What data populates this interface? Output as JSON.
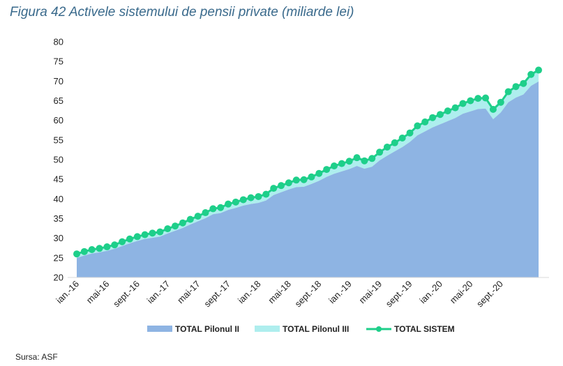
{
  "title": "Figura 42 Activele sistemului de pensii private (miliarde lei)",
  "source": "Sursa: ASF",
  "colors": {
    "pilon2": "#8eb4e3",
    "pilon3": "#aeeeee",
    "sistem": "#1ecf8a"
  },
  "chart_data": {
    "type": "area",
    "title": "Figura 42 Activele sistemului de pensii private (miliarde lei)",
    "ylim": [
      20,
      80
    ],
    "yticks": [
      20,
      25,
      30,
      35,
      40,
      45,
      50,
      55,
      60,
      65,
      70,
      75,
      80
    ],
    "x_tick_labels": [
      "ian.-16",
      "mai-16",
      "sept.-16",
      "ian.-17",
      "mai-17",
      "sept.-17",
      "ian.-18",
      "mai-18",
      "sept.-18",
      "ian.-19",
      "mai-19",
      "sept.-19",
      "ian.-20",
      "mai-20",
      "sept.-20"
    ],
    "x_tick_every": 4,
    "series": [
      {
        "name": "TOTAL Pilonul II",
        "type": "area",
        "values": [
          25.0,
          25.6,
          26.1,
          26.4,
          26.8,
          27.3,
          28.0,
          28.7,
          29.3,
          29.8,
          30.1,
          30.4,
          31.2,
          31.9,
          32.6,
          33.5,
          34.3,
          35.1,
          36.1,
          36.4,
          37.2,
          37.7,
          38.3,
          38.7,
          39.0,
          39.6,
          41.0,
          41.7,
          42.4,
          43.0,
          43.1,
          43.8,
          44.6,
          45.6,
          46.4,
          47.0,
          47.6,
          48.4,
          47.7,
          48.2,
          49.8,
          51.0,
          52.1,
          53.2,
          54.5,
          56.2,
          57.2,
          58.2,
          59.0,
          59.8,
          60.6,
          61.7,
          62.3,
          62.9,
          63.0,
          60.3,
          62.0,
          64.6,
          65.8,
          66.6,
          68.8,
          69.9
        ]
      },
      {
        "name": "TOTAL Pilonul III",
        "type": "area",
        "values": [
          1.0,
          1.0,
          1.0,
          1.0,
          1.0,
          1.0,
          1.1,
          1.1,
          1.1,
          1.1,
          1.2,
          1.2,
          1.2,
          1.2,
          1.3,
          1.3,
          1.3,
          1.4,
          1.4,
          1.4,
          1.5,
          1.5,
          1.5,
          1.6,
          1.6,
          1.6,
          1.7,
          1.7,
          1.7,
          1.8,
          1.8,
          1.8,
          1.9,
          1.9,
          2.0,
          2.0,
          2.0,
          2.1,
          2.0,
          2.1,
          2.1,
          2.2,
          2.2,
          2.3,
          2.3,
          2.4,
          2.4,
          2.5,
          2.5,
          2.6,
          2.6,
          2.6,
          2.7,
          2.7,
          2.7,
          2.5,
          2.6,
          2.7,
          2.8,
          2.8,
          2.9,
          2.9
        ]
      },
      {
        "name": "TOTAL SISTEM",
        "type": "line",
        "values": [
          26.0,
          26.6,
          27.1,
          27.4,
          27.8,
          28.3,
          29.1,
          29.8,
          30.4,
          30.9,
          31.3,
          31.6,
          32.4,
          33.1,
          33.9,
          34.8,
          35.6,
          36.5,
          37.5,
          37.8,
          38.7,
          39.2,
          39.8,
          40.3,
          40.6,
          41.2,
          42.7,
          43.4,
          44.1,
          44.8,
          44.9,
          45.6,
          46.5,
          47.5,
          48.4,
          49.0,
          49.6,
          50.5,
          49.7,
          50.3,
          51.9,
          53.2,
          54.3,
          55.5,
          56.8,
          58.6,
          59.6,
          60.7,
          61.5,
          62.4,
          63.2,
          64.3,
          65.0,
          65.6,
          65.7,
          62.8,
          64.6,
          67.3,
          68.6,
          69.4,
          71.7,
          72.8
        ]
      }
    ],
    "legend": [
      "TOTAL Pilonul II",
      "TOTAL Pilonul III",
      "TOTAL SISTEM"
    ],
    "legend_position": "bottom"
  }
}
